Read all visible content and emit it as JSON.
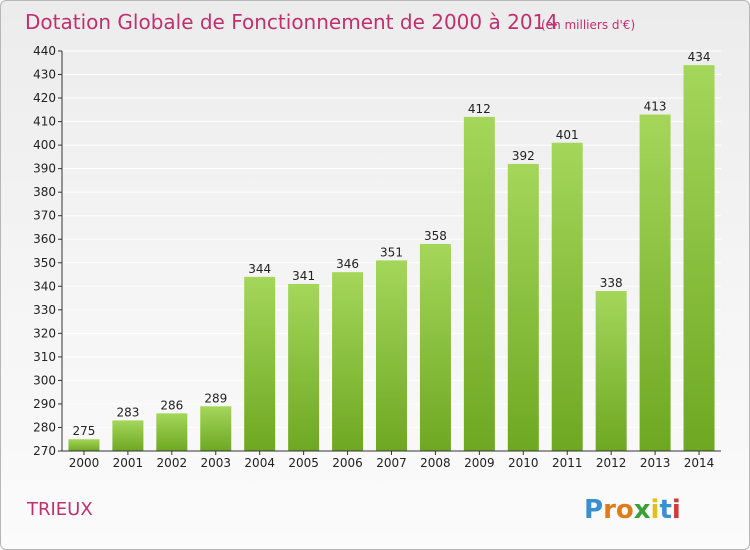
{
  "title": "Dotation Globale de Fonctionnement de 2000 à 2014",
  "unit": "(en milliers d'€)",
  "place": "TRIEUX",
  "logo": {
    "letters": [
      "P",
      "r",
      "o",
      "x",
      "i",
      "t",
      "i"
    ],
    "colors": [
      "#3a8fd0",
      "#e07b1a",
      "#e07b1a",
      "#3aa13a",
      "#e0c01a",
      "#3a8fd0",
      "#d03a3a"
    ]
  },
  "colors": {
    "title": "#c0306e",
    "bar_top": "#a4d65a",
    "bar_bottom": "#6ea822",
    "grid": "#ffffff",
    "axis": "#333333"
  },
  "chart_data": {
    "type": "bar",
    "title": "Dotation Globale de Fonctionnement de 2000 à 2014",
    "subtitle": "(en milliers d'€)",
    "categories": [
      "2000",
      "2001",
      "2002",
      "2003",
      "2004",
      "2005",
      "2006",
      "2007",
      "2008",
      "2009",
      "2010",
      "2011",
      "2012",
      "2013",
      "2014"
    ],
    "values": [
      275,
      283,
      286,
      289,
      344,
      341,
      346,
      351,
      358,
      412,
      392,
      401,
      338,
      413,
      434
    ],
    "ylim": [
      270,
      440
    ],
    "ytick_step": 10,
    "xlabel": "",
    "ylabel": "",
    "grid": true,
    "data_labels": true
  }
}
